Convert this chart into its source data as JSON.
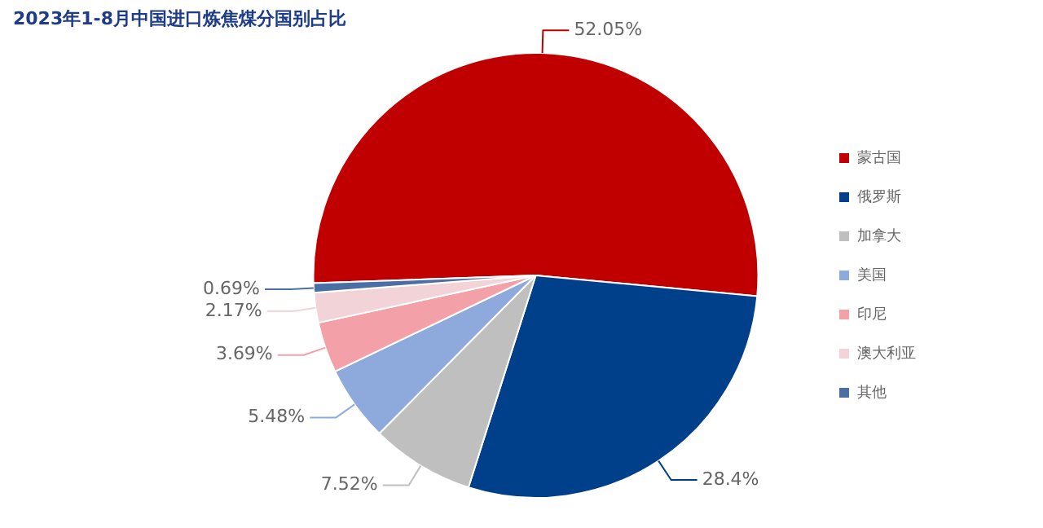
{
  "chart_data": {
    "type": "pie",
    "title": "2023年1-8月中国进口炼焦煤分国别占比",
    "categories": [
      "蒙古国",
      "俄罗斯",
      "加拿大",
      "美国",
      "印尼",
      "澳大利亚",
      "其他"
    ],
    "values": [
      52.05,
      28.4,
      7.52,
      5.48,
      3.69,
      2.17,
      0.69
    ],
    "value_labels": [
      "52.05%",
      "28.4%",
      "7.52%",
      "5.48%",
      "3.69%",
      "2.17%",
      "0.69%"
    ],
    "colors": [
      "#c00000",
      "#003f8a",
      "#bfbfbf",
      "#8ea9db",
      "#f4a0a8",
      "#f2d4d8",
      "#4a6fa5"
    ],
    "legend": "right"
  }
}
